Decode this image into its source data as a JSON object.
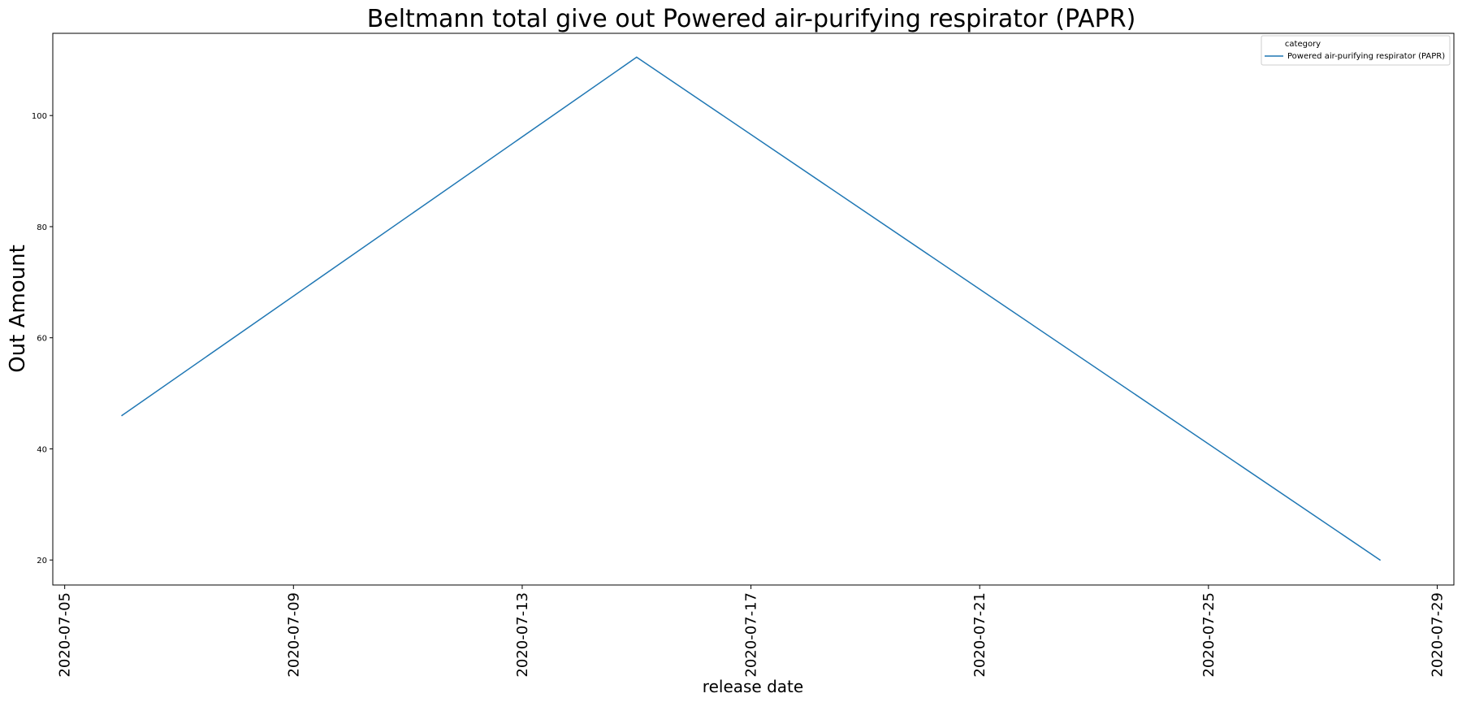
{
  "chart_data": {
    "type": "line",
    "title": "Beltmann total give out Powered air-purifying respirator (PAPR)",
    "xlabel": "release date",
    "ylabel": "Out Amount",
    "x_ticks": [
      "2020-07-05",
      "2020-07-09",
      "2020-07-13",
      "2020-07-17",
      "2020-07-21",
      "2020-07-25",
      "2020-07-29"
    ],
    "y_ticks": [
      20,
      40,
      60,
      80,
      100
    ],
    "xlim": [
      "2020-07-04T19:00",
      "2020-07-29T07:00"
    ],
    "ylim": [
      15.5,
      114.8
    ],
    "legend": {
      "title": "category",
      "position": "top-right"
    },
    "series": [
      {
        "name": "Powered air-purifying respirator (PAPR)",
        "color": "#1f77b4",
        "x": [
          "2020-07-06",
          "2020-07-15",
          "2020-07-28"
        ],
        "y": [
          46,
          110.5,
          20
        ]
      }
    ],
    "grid": false
  }
}
